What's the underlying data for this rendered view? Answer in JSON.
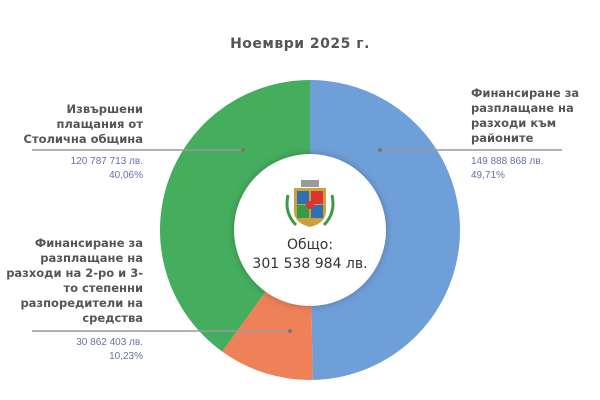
{
  "chart_data": {
    "type": "pie",
    "variant": "donut",
    "title": "Ноември  2025 г.",
    "center": {
      "label": "Общо:",
      "value": "301 538 984 лв."
    },
    "slices": [
      {
        "label": "Финансиране за разплащане на разходи към районите",
        "value": 149888868,
        "value_text": "149 888 868 лв.",
        "percent": 49.71,
        "percent_text": "49,71%",
        "color": "#6f9fd8"
      },
      {
        "label": "Финансиране за разплащане на разходи на 2-ро и 3-то степенни разпоредители на средства",
        "value": 30862403,
        "value_text": "30 862 403 лв.",
        "percent": 10.23,
        "percent_text": "10,23%",
        "color": "#ef8158"
      },
      {
        "label": "Извършени плащания от Столична община",
        "value": 120787713,
        "value_text": "120 787 713 лв.",
        "percent": 40.06,
        "percent_text": "40,06%",
        "color": "#44ad5e"
      }
    ],
    "legend": "none"
  }
}
